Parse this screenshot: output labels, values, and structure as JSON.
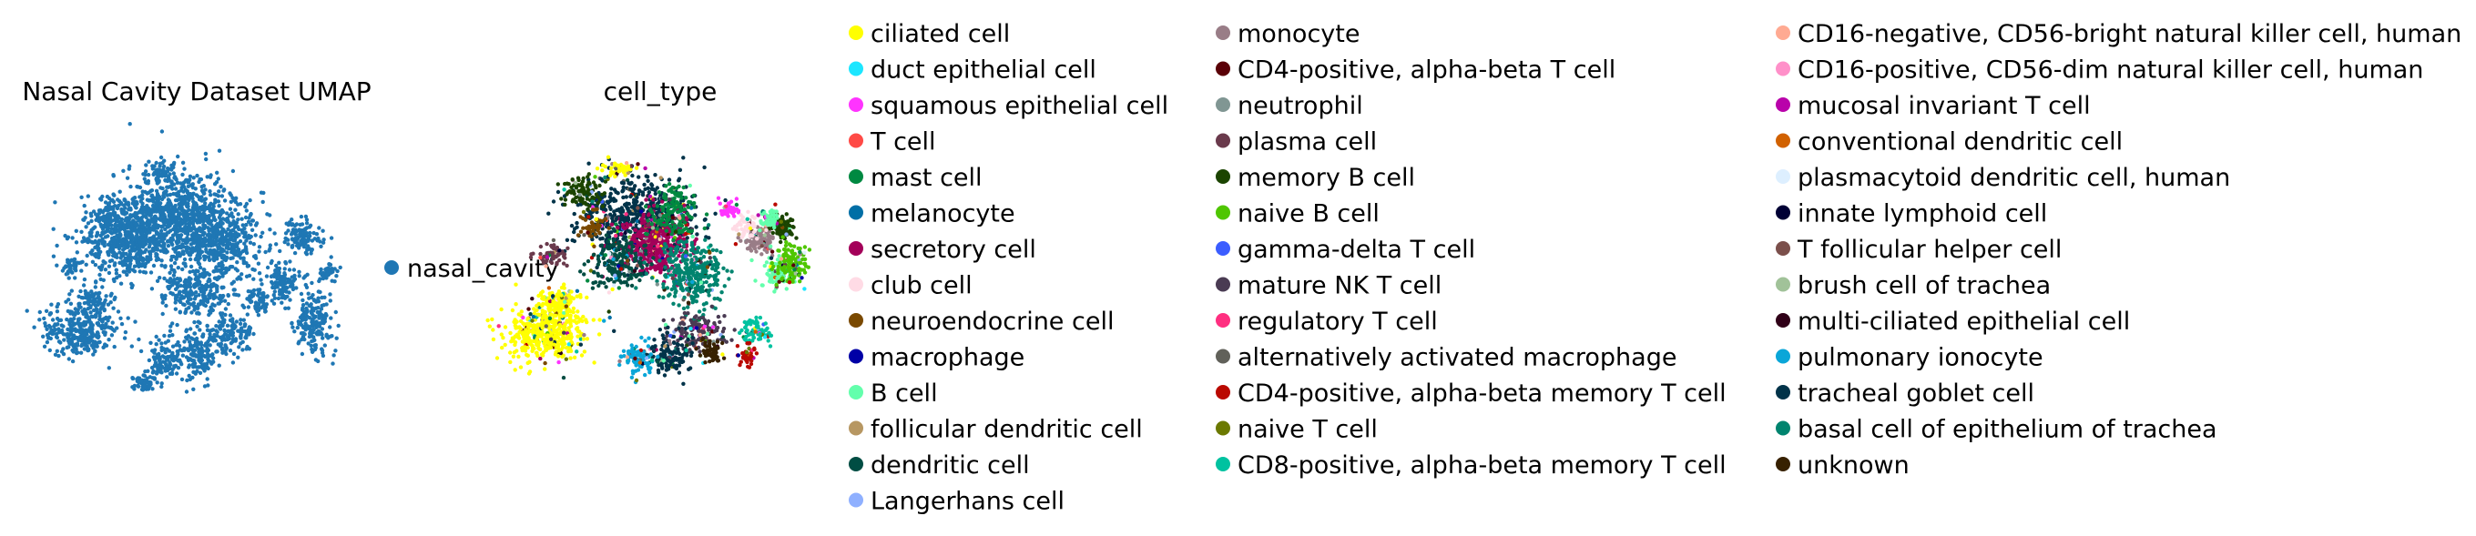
{
  "chart_data": [
    {
      "type": "scatter",
      "title": "Nasal Cavity Dataset UMAP",
      "xlabel": "",
      "ylabel": "",
      "grid": false,
      "axes_visible": false,
      "series": [
        {
          "name": "nasal_cavity",
          "color": "#1f77b4"
        }
      ],
      "legend_placement": "right"
    },
    {
      "type": "scatter",
      "title": "cell_type",
      "xlabel": "",
      "ylabel": "",
      "grid": false,
      "axes_visible": false,
      "legend_placement": "right",
      "legend_columns": [
        [
          {
            "name": "ciliated cell",
            "color": "#ffff00"
          },
          {
            "name": "duct epithelial cell",
            "color": "#1ce6ff"
          },
          {
            "name": "squamous epithelial cell",
            "color": "#ff34ff"
          },
          {
            "name": "T cell",
            "color": "#ff4a46"
          },
          {
            "name": "mast cell",
            "color": "#008941"
          },
          {
            "name": "melanocyte",
            "color": "#006fa6"
          },
          {
            "name": "secretory cell",
            "color": "#a30059"
          },
          {
            "name": "club cell",
            "color": "#ffdbe5"
          },
          {
            "name": "neuroendocrine cell",
            "color": "#7a4900"
          },
          {
            "name": "macrophage",
            "color": "#0000a6"
          },
          {
            "name": "B cell",
            "color": "#63ffac"
          },
          {
            "name": "follicular dendritic cell",
            "color": "#b79762"
          },
          {
            "name": "dendritic cell",
            "color": "#004d43"
          },
          {
            "name": "Langerhans cell",
            "color": "#8fb0ff"
          }
        ],
        [
          {
            "name": "monocyte",
            "color": "#997d87"
          },
          {
            "name": "CD4-positive, alpha-beta T cell",
            "color": "#5a0007"
          },
          {
            "name": "neutrophil",
            "color": "#809693"
          },
          {
            "name": "plasma cell",
            "color": "#6a3a4c"
          },
          {
            "name": "memory B cell",
            "color": "#1b4400"
          },
          {
            "name": "naive B cell",
            "color": "#4fc601"
          },
          {
            "name": "gamma-delta T cell",
            "color": "#3b5dff"
          },
          {
            "name": "mature NK T cell",
            "color": "#4a3b53"
          },
          {
            "name": "regulatory T cell",
            "color": "#ff2f80"
          },
          {
            "name": "alternatively activated macrophage",
            "color": "#61615a"
          },
          {
            "name": "CD4-positive, alpha-beta memory T cell",
            "color": "#ba0900"
          },
          {
            "name": "naive T cell",
            "color": "#6b7900"
          },
          {
            "name": "CD8-positive, alpha-beta memory T cell",
            "color": "#00c2a0"
          }
        ],
        [
          {
            "name": "CD16-negative, CD56-bright natural killer cell, human",
            "color": "#ffaa92"
          },
          {
            "name": "CD16-positive, CD56-dim natural killer cell, human",
            "color": "#ff90c9"
          },
          {
            "name": "mucosal invariant T cell",
            "color": "#b903aa"
          },
          {
            "name": "conventional dendritic cell",
            "color": "#d16100"
          },
          {
            "name": "plasmacytoid dendritic cell, human",
            "color": "#ddefff"
          },
          {
            "name": "innate lymphoid cell",
            "color": "#000035"
          },
          {
            "name": "T follicular helper cell",
            "color": "#7b4f4b"
          },
          {
            "name": "brush cell of trachea",
            "color": "#a1c299"
          },
          {
            "name": "multi-ciliated epithelial cell",
            "color": "#300018"
          },
          {
            "name": "pulmonary ionocyte",
            "color": "#0aa6d8"
          },
          {
            "name": "tracheal goblet cell",
            "color": "#013349"
          },
          {
            "name": "basal cell of epithelium of trachea",
            "color": "#00846f"
          },
          {
            "name": "unknown",
            "color": "#372101"
          }
        ]
      ]
    }
  ]
}
